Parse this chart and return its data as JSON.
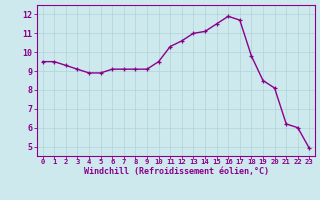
{
  "x": [
    0,
    1,
    2,
    3,
    4,
    5,
    6,
    7,
    8,
    9,
    10,
    11,
    12,
    13,
    14,
    15,
    16,
    17,
    18,
    19,
    20,
    21,
    22,
    23
  ],
  "y": [
    9.5,
    9.5,
    9.3,
    9.1,
    8.9,
    8.9,
    9.1,
    9.1,
    9.1,
    9.1,
    9.5,
    10.3,
    10.6,
    11.0,
    11.1,
    11.5,
    11.9,
    11.7,
    9.8,
    8.5,
    8.1,
    6.2,
    6.0,
    4.9
  ],
  "line_color": "#8b008b",
  "marker": "+",
  "marker_color": "#8b008b",
  "bg_color": "#cde9ed",
  "grid_color": "#aed4d9",
  "ylabel_ticks": [
    5,
    6,
    7,
    8,
    9,
    10,
    11,
    12
  ],
  "xlabel_ticks": [
    0,
    1,
    2,
    3,
    4,
    5,
    6,
    7,
    8,
    9,
    10,
    11,
    12,
    13,
    14,
    15,
    16,
    17,
    18,
    19,
    20,
    21,
    22,
    23
  ],
  "ylim": [
    4.5,
    12.5
  ],
  "xlim": [
    -0.5,
    23.5
  ],
  "xlabel": "Windchill (Refroidissement éolien,°C)",
  "tick_color": "#8b008b",
  "axis_color": "#8b008b",
  "font_color": "#8b008b",
  "xtick_fontsize": 5.2,
  "ytick_fontsize": 6.0,
  "xlabel_fontsize": 6.0,
  "marker_size": 3.5,
  "line_width": 1.0
}
